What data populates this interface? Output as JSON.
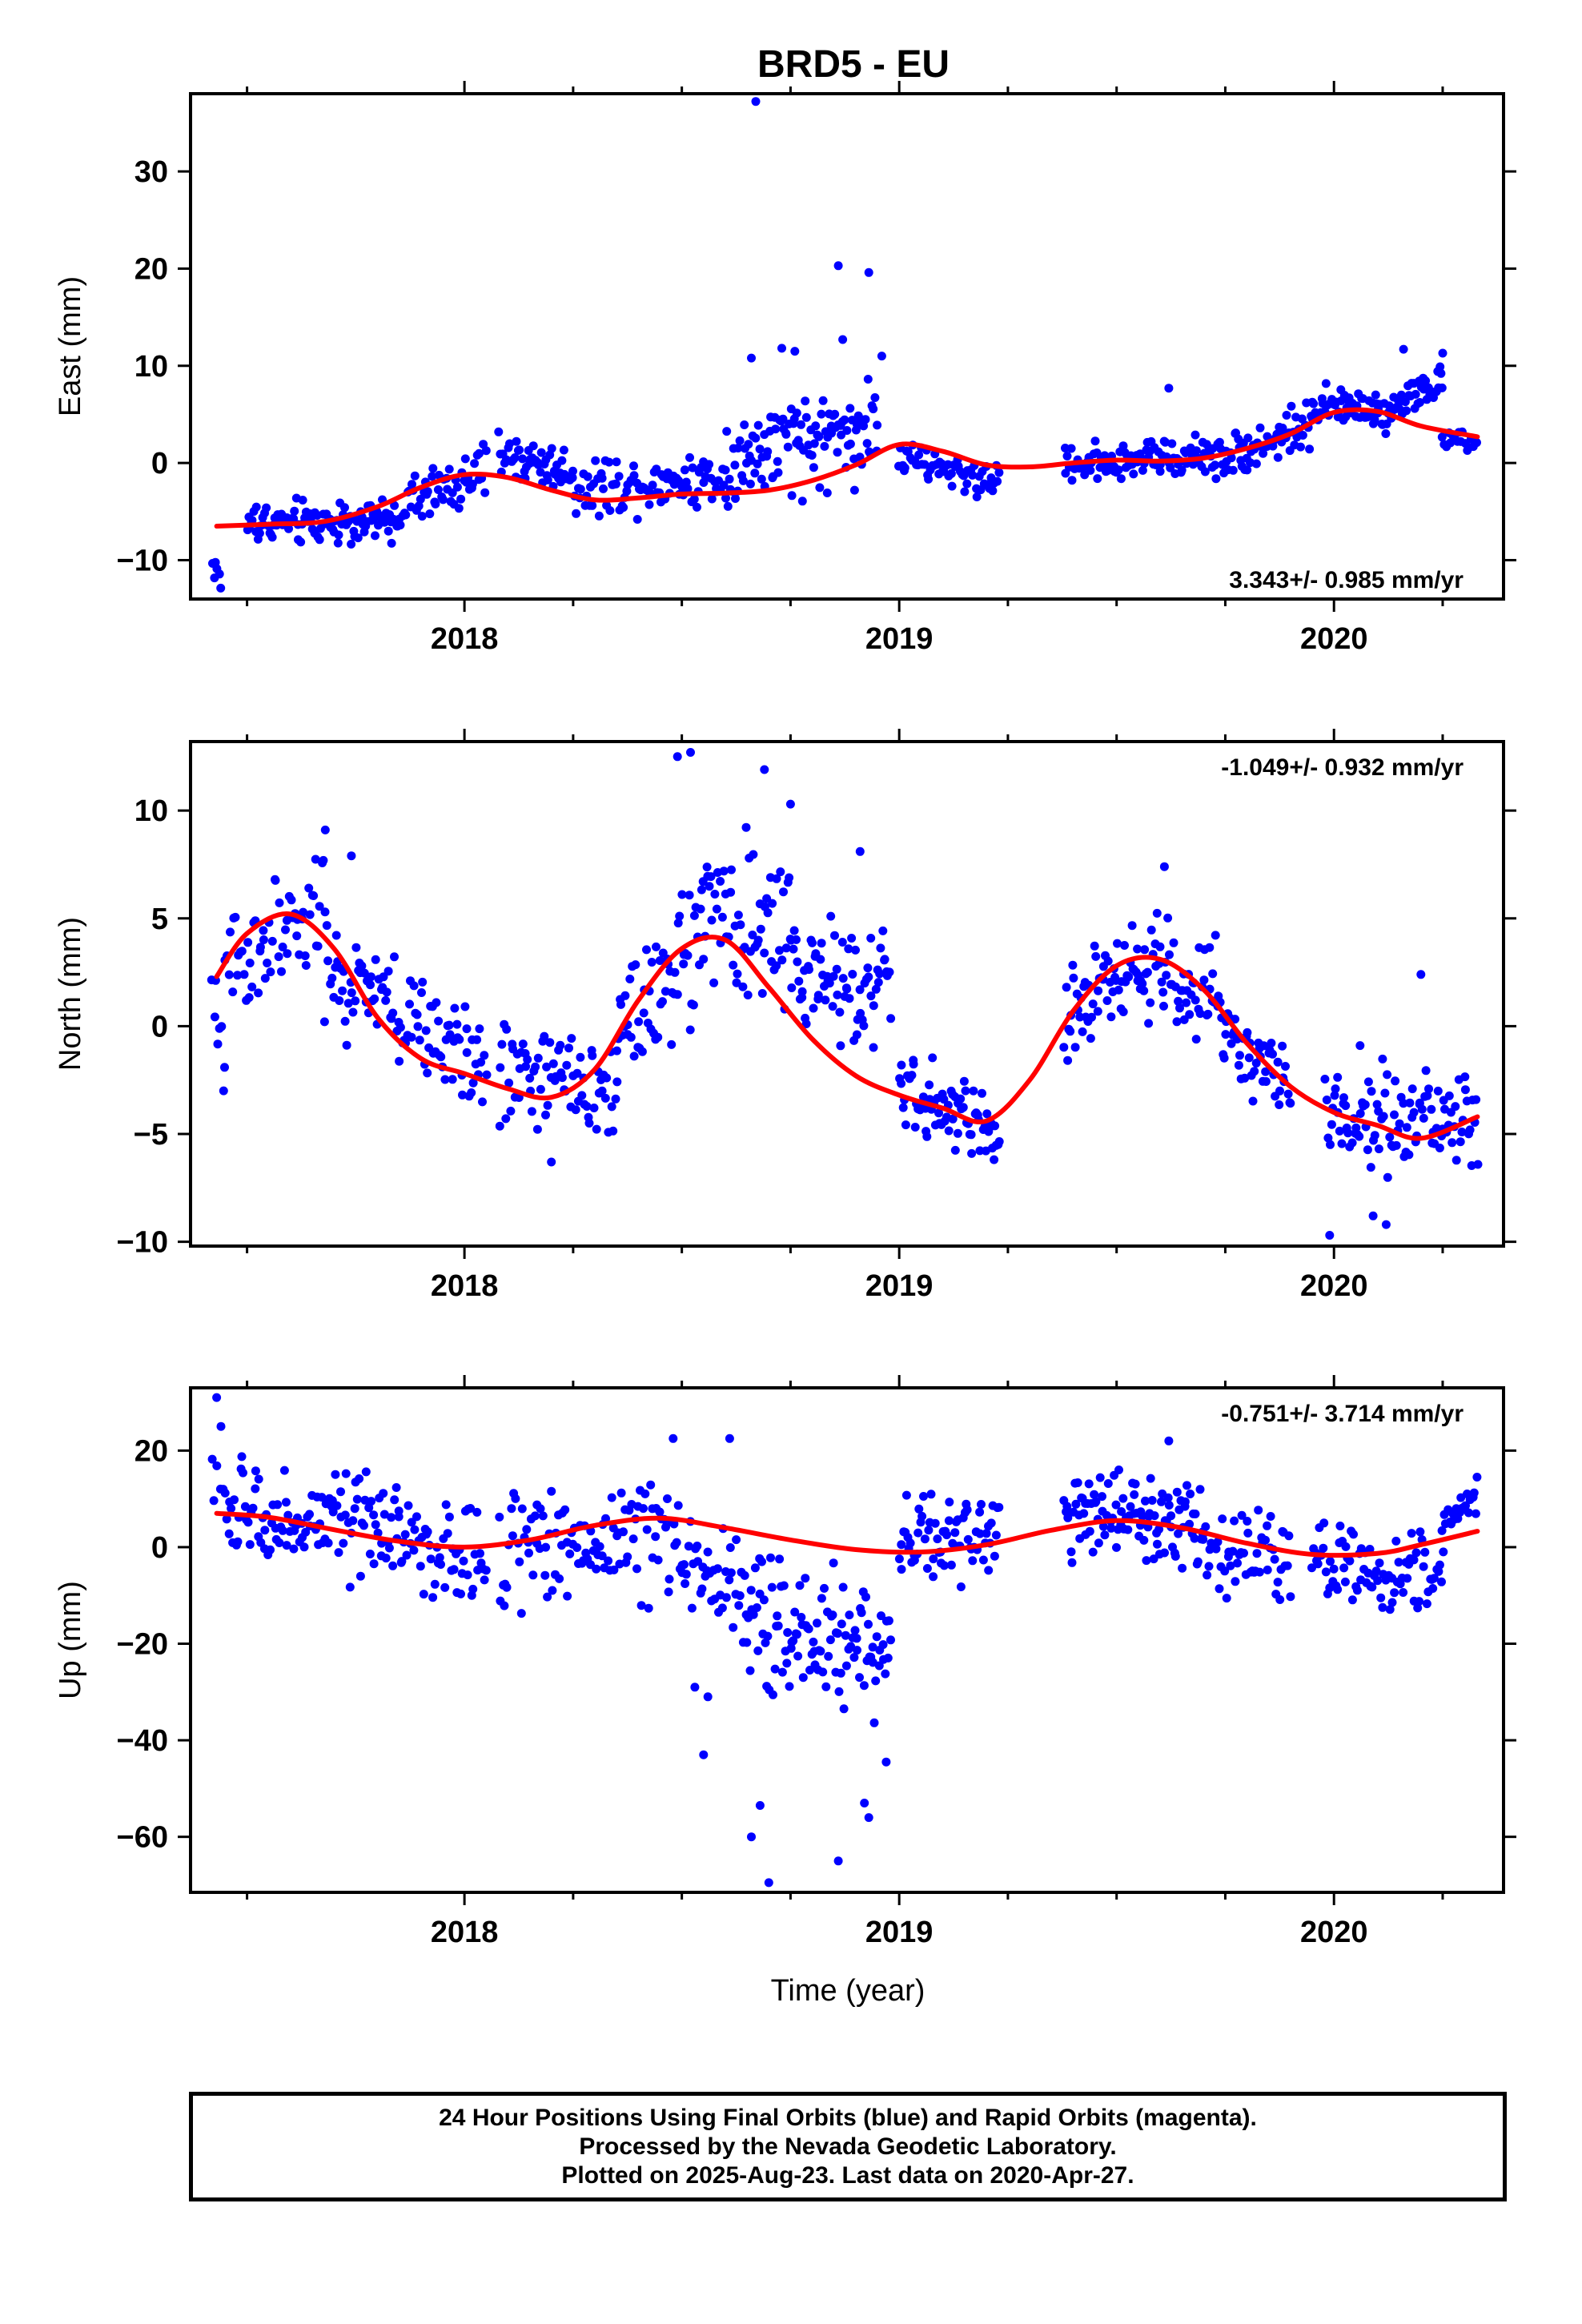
{
  "title": "BRD5 - EU",
  "colors": {
    "points": "#0000ff",
    "fit": "#ff0000",
    "axis": "#000000"
  },
  "xlabel": "Time (year)",
  "footer": {
    "line1": "24 Hour Positions Using Final Orbits (blue) and Rapid Orbits (magenta).",
    "line2": "Processed by the Nevada Geodetic Laboratory.",
    "line3": "Plotted on 2025-Aug-23. Last data on 2020-Apr-27."
  },
  "chart_data": [
    {
      "type": "scatter",
      "name": "east",
      "ylabel": "East (mm)",
      "xlim": [
        2017.37,
        2020.39
      ],
      "ylim": [
        -14,
        38
      ],
      "xticks": [
        "2018",
        "2019",
        "2020"
      ],
      "yticks": [
        "−10",
        "0",
        "10",
        "20",
        "30"
      ],
      "rate": "3.343+/- 0.985 mm/yr",
      "rate_position": "bottom-right",
      "grid": false,
      "fit_x": [
        2017.43,
        2017.55,
        2017.68,
        2017.8,
        2017.9,
        2018.0,
        2018.1,
        2018.2,
        2018.3,
        2018.4,
        2018.5,
        2018.6,
        2018.7,
        2018.8,
        2018.9,
        2019.0,
        2019.1,
        2019.2,
        2019.3,
        2019.4,
        2019.5,
        2019.6,
        2019.7,
        2019.8,
        2019.9,
        2020.0,
        2020.1,
        2020.2,
        2020.33
      ],
      "fit_y": [
        -6.5,
        -6.3,
        -6.0,
        -4.5,
        -2.5,
        -1.2,
        -1.5,
        -2.8,
        -3.8,
        -3.6,
        -3.2,
        -3.1,
        -2.8,
        -1.8,
        -0.2,
        1.9,
        1.2,
        -0.2,
        -0.4,
        0.0,
        0.3,
        0.2,
        0.5,
        1.5,
        3.0,
        5.2,
        5.3,
        3.8,
        2.7
      ],
      "scatter_groups": [
        {
          "x_start": 2017.42,
          "x_end": 2017.44,
          "y_start": -10.0,
          "y_end": -12.5,
          "amp": 1.2,
          "n": 6
        },
        {
          "x_start": 2017.5,
          "x_end": 2017.85,
          "y_start": -6.2,
          "y_end": -6.0,
          "amp": 1.6,
          "n": 110
        },
        {
          "x_start": 2017.85,
          "x_end": 2018.05,
          "y_start": -4.5,
          "y_end": -1.0,
          "amp": 1.8,
          "n": 55
        },
        {
          "x_start": 2018.08,
          "x_end": 2018.25,
          "y_start": 1.0,
          "y_end": -1.0,
          "amp": 1.8,
          "n": 55
        },
        {
          "x_start": 2018.25,
          "x_end": 2018.6,
          "y_start": -2.5,
          "y_end": -1.5,
          "amp": 2.0,
          "n": 95
        },
        {
          "x_start": 2018.6,
          "x_end": 2018.95,
          "y_start": 0.0,
          "y_end": 4.0,
          "amp": 3.6,
          "n": 115
        },
        {
          "x_start": 2019.0,
          "x_end": 2019.23,
          "y_start": 0.5,
          "y_end": -2.0,
          "amp": 1.3,
          "n": 65
        },
        {
          "x_start": 2019.38,
          "x_end": 2019.8,
          "y_start": 0.0,
          "y_end": 1.0,
          "amp": 1.5,
          "n": 120
        },
        {
          "x_start": 2019.8,
          "x_end": 2019.95,
          "y_start": 1.5,
          "y_end": 4.0,
          "amp": 1.5,
          "n": 45
        },
        {
          "x_start": 2019.95,
          "x_end": 2020.1,
          "y_start": 6.0,
          "y_end": 5.5,
          "amp": 1.3,
          "n": 50
        },
        {
          "x_start": 2020.1,
          "x_end": 2020.25,
          "y_start": 5.0,
          "y_end": 8.5,
          "amp": 1.4,
          "n": 50
        },
        {
          "x_start": 2020.25,
          "x_end": 2020.33,
          "y_start": 2.0,
          "y_end": 2.0,
          "amp": 0.8,
          "n": 18
        }
      ],
      "outliers": [
        {
          "x": 2018.67,
          "y": 37.2
        },
        {
          "x": 2018.86,
          "y": 20.3
        },
        {
          "x": 2018.93,
          "y": 19.6
        },
        {
          "x": 2018.87,
          "y": 12.7
        },
        {
          "x": 2018.73,
          "y": 11.8
        },
        {
          "x": 2018.76,
          "y": 11.5
        },
        {
          "x": 2018.96,
          "y": 11.0
        },
        {
          "x": 2018.66,
          "y": 10.8
        },
        {
          "x": 2020.16,
          "y": 11.7
        },
        {
          "x": 2020.25,
          "y": 11.3
        },
        {
          "x": 2019.62,
          "y": 7.7
        }
      ]
    },
    {
      "type": "scatter",
      "name": "north",
      "ylabel": "North (mm)",
      "xlim": [
        2017.37,
        2020.39
      ],
      "ylim": [
        -10.2,
        13.2
      ],
      "xticks": [
        "2018",
        "2019",
        "2020"
      ],
      "yticks": [
        "−10",
        "−5",
        "0",
        "5",
        "10"
      ],
      "rate": "-1.049+/- 0.932 mm/yr",
      "rate_position": "top-right",
      "grid": false,
      "fit_x": [
        2017.43,
        2017.5,
        2017.6,
        2017.7,
        2017.8,
        2017.9,
        2018.0,
        2018.1,
        2018.2,
        2018.3,
        2018.4,
        2018.5,
        2018.6,
        2018.7,
        2018.8,
        2018.9,
        2019.0,
        2019.1,
        2019.2,
        2019.3,
        2019.4,
        2019.5,
        2019.6,
        2019.7,
        2019.8,
        2019.9,
        2020.0,
        2020.1,
        2020.2,
        2020.33
      ],
      "fit_y": [
        2.3,
        4.3,
        5.2,
        3.6,
        0.4,
        -1.5,
        -2.2,
        -2.9,
        -3.3,
        -2.0,
        1.2,
        3.6,
        4.0,
        1.8,
        -0.6,
        -2.3,
        -3.2,
        -3.8,
        -4.4,
        -2.5,
        0.7,
        2.8,
        3.1,
        1.7,
        -0.8,
        -2.8,
        -4.0,
        -4.6,
        -5.2,
        -4.2
      ],
      "scatter_groups": [
        {
          "x_start": 2017.42,
          "x_end": 2017.45,
          "y_start": 1.0,
          "y_end": -2.0,
          "amp": 1.5,
          "n": 8
        },
        {
          "x_start": 2017.45,
          "x_end": 2017.68,
          "y_start": 3.0,
          "y_end": 5.0,
          "amp": 2.2,
          "n": 60
        },
        {
          "x_start": 2017.68,
          "x_end": 2018.05,
          "y_start": 2.5,
          "y_end": -2.0,
          "amp": 1.8,
          "n": 105
        },
        {
          "x_start": 2018.08,
          "x_end": 2018.35,
          "y_start": -2.0,
          "y_end": -3.0,
          "amp": 1.7,
          "n": 75
        },
        {
          "x_start": 2018.35,
          "x_end": 2018.55,
          "y_start": 0.0,
          "y_end": 4.0,
          "amp": 2.4,
          "n": 60
        },
        {
          "x_start": 2018.55,
          "x_end": 2018.75,
          "y_start": 5.0,
          "y_end": 4.0,
          "amp": 2.6,
          "n": 60
        },
        {
          "x_start": 2018.75,
          "x_end": 2018.98,
          "y_start": 2.5,
          "y_end": 2.0,
          "amp": 2.0,
          "n": 75
        },
        {
          "x_start": 2019.0,
          "x_end": 2019.23,
          "y_start": -3.0,
          "y_end": -5.0,
          "amp": 1.2,
          "n": 75
        },
        {
          "x_start": 2019.38,
          "x_end": 2019.55,
          "y_start": 0.5,
          "y_end": 3.0,
          "amp": 1.5,
          "n": 55
        },
        {
          "x_start": 2019.55,
          "x_end": 2019.75,
          "y_start": 3.0,
          "y_end": 1.0,
          "amp": 1.8,
          "n": 65
        },
        {
          "x_start": 2019.75,
          "x_end": 2019.9,
          "y_start": 0.0,
          "y_end": -3.5,
          "amp": 1.4,
          "n": 45
        },
        {
          "x_start": 2019.98,
          "x_end": 2020.33,
          "y_start": -4.0,
          "y_end": -4.5,
          "amp": 1.5,
          "n": 105
        }
      ],
      "outliers": [
        {
          "x": 2018.52,
          "y": 12.7
        },
        {
          "x": 2018.49,
          "y": 12.5
        },
        {
          "x": 2018.69,
          "y": 11.9
        },
        {
          "x": 2018.75,
          "y": 10.3
        },
        {
          "x": 2018.91,
          "y": 8.1
        },
        {
          "x": 2017.68,
          "y": 9.1
        },
        {
          "x": 2017.74,
          "y": 7.9
        },
        {
          "x": 2019.61,
          "y": 7.4
        },
        {
          "x": 2018.2,
          "y": -6.3
        },
        {
          "x": 2019.99,
          "y": -9.7
        },
        {
          "x": 2020.12,
          "y": -9.2
        },
        {
          "x": 2020.09,
          "y": -8.8
        },
        {
          "x": 2020.2,
          "y": 2.4
        },
        {
          "x": 2020.06,
          "y": -0.9
        }
      ]
    },
    {
      "type": "scatter",
      "name": "up",
      "ylabel": "Up (mm)",
      "xlim": [
        2017.37,
        2020.39
      ],
      "ylim": [
        -71.5,
        33.0
      ],
      "xticks": [
        "2018",
        "2019",
        "2020"
      ],
      "yticks": [
        "−60",
        "−40",
        "−20",
        "0",
        "20"
      ],
      "rate": "-0.751+/- 3.714 mm/yr",
      "rate_position": "top-right",
      "grid": false,
      "fit_x": [
        2017.43,
        2017.55,
        2017.7,
        2017.85,
        2018.0,
        2018.15,
        2018.3,
        2018.45,
        2018.6,
        2018.75,
        2018.9,
        2019.05,
        2019.2,
        2019.35,
        2019.5,
        2019.65,
        2019.8,
        2019.95,
        2020.1,
        2020.2,
        2020.33
      ],
      "fit_y": [
        7.0,
        6.2,
        3.6,
        1.2,
        0.0,
        1.5,
        4.5,
        6.0,
        4.0,
        1.5,
        -0.5,
        -1.0,
        0.5,
        3.5,
        5.5,
        4.0,
        0.8,
        -1.5,
        -1.3,
        0.5,
        3.3
      ],
      "scatter_groups": [
        {
          "x_start": 2017.42,
          "x_end": 2017.46,
          "y_start": 15.0,
          "y_end": 5.0,
          "amp": 8.0,
          "n": 8
        },
        {
          "x_start": 2017.46,
          "x_end": 2017.85,
          "y_start": 7.0,
          "y_end": 3.0,
          "amp": 7.5,
          "n": 110
        },
        {
          "x_start": 2017.85,
          "x_end": 2018.05,
          "y_start": 1.0,
          "y_end": -3.0,
          "amp": 7.0,
          "n": 55
        },
        {
          "x_start": 2018.08,
          "x_end": 2018.5,
          "y_start": 0.0,
          "y_end": 3.0,
          "amp": 8.5,
          "n": 110
        },
        {
          "x_start": 2018.5,
          "x_end": 2018.65,
          "y_start": -3.0,
          "y_end": -10.0,
          "amp": 9.5,
          "n": 40
        },
        {
          "x_start": 2018.65,
          "x_end": 2018.98,
          "y_start": -15.0,
          "y_end": -20.0,
          "amp": 10.0,
          "n": 110
        },
        {
          "x_start": 2019.0,
          "x_end": 2019.23,
          "y_start": 2.0,
          "y_end": 2.0,
          "amp": 5.5,
          "n": 70
        },
        {
          "x_start": 2019.38,
          "x_end": 2019.7,
          "y_start": 7.0,
          "y_end": 5.0,
          "amp": 6.5,
          "n": 110
        },
        {
          "x_start": 2019.7,
          "x_end": 2019.9,
          "y_start": 0.0,
          "y_end": -2.0,
          "amp": 6.0,
          "n": 55
        },
        {
          "x_start": 2019.95,
          "x_end": 2020.25,
          "y_start": -2.0,
          "y_end": -7.0,
          "amp": 6.0,
          "n": 85
        },
        {
          "x_start": 2020.25,
          "x_end": 2020.33,
          "y_start": 5.0,
          "y_end": 11.0,
          "amp": 3.0,
          "n": 22
        }
      ],
      "outliers": [
        {
          "x": 2017.43,
          "y": 31.0
        },
        {
          "x": 2017.44,
          "y": 25.0
        },
        {
          "x": 2018.48,
          "y": 22.5
        },
        {
          "x": 2018.61,
          "y": 22.5
        },
        {
          "x": 2019.62,
          "y": 22.0
        },
        {
          "x": 2018.55,
          "y": -43.0
        },
        {
          "x": 2018.66,
          "y": -60.0
        },
        {
          "x": 2018.68,
          "y": -53.5
        },
        {
          "x": 2018.7,
          "y": -69.5
        },
        {
          "x": 2018.86,
          "y": -65.0
        },
        {
          "x": 2018.92,
          "y": -53.0
        },
        {
          "x": 2018.93,
          "y": -56.0
        },
        {
          "x": 2018.97,
          "y": -44.5
        },
        {
          "x": 2018.53,
          "y": -29.0
        },
        {
          "x": 2018.56,
          "y": -31.0
        }
      ]
    }
  ]
}
